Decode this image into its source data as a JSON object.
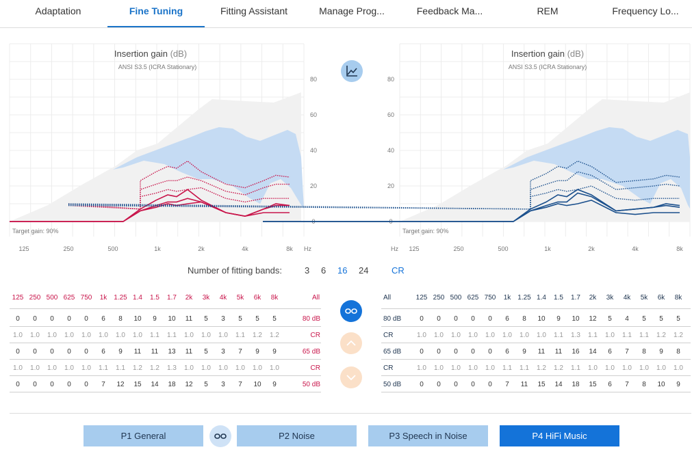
{
  "tabs": [
    {
      "label": "Adaptation"
    },
    {
      "label": "Fine Tuning"
    },
    {
      "label": "Fitting Assistant"
    },
    {
      "label": "Manage Prog..."
    },
    {
      "label": "Feedback Ma..."
    },
    {
      "label": "REM"
    },
    {
      "label": "Frequency Lo..."
    }
  ],
  "colors": {
    "left": "#c8144a",
    "right": "#1a4f8c",
    "accent": "#1473d9",
    "band": "#a7ccee"
  },
  "chart_title": "Insertion gain",
  "chart_unit": "(dB)",
  "chart_subtitle": "ANSI S3.5 (ICRA Stationary)",
  "target_gain": "Target gain: 90%",
  "hz": "Hz",
  "y_ticks": [
    "80",
    "60",
    "40",
    "20",
    "0"
  ],
  "freq_labels": [
    "125",
    "250",
    "500",
    "1k",
    "2k",
    "4k",
    "8k"
  ],
  "chart_data": [
    {
      "type": "line",
      "title": "Insertion gain (dB)",
      "subtitle": "ANSI S3.5 (ICRA Stationary)",
      "xlabel": "Hz",
      "ylim": [
        0,
        90
      ],
      "grid": true,
      "categories": [
        "125",
        "250",
        "500",
        "625",
        "750",
        "1k",
        "1.25",
        "1.4",
        "1.5",
        "1.7",
        "2k",
        "3k",
        "4k",
        "5k",
        "6k",
        "8k"
      ],
      "series": [
        {
          "name": "80 dB",
          "values": [
            0,
            0,
            0,
            0,
            0,
            6,
            8,
            10,
            9,
            10,
            11,
            5,
            3,
            5,
            5,
            5
          ]
        },
        {
          "name": "65 dB",
          "values": [
            0,
            0,
            0,
            0,
            0,
            6,
            9,
            11,
            11,
            13,
            11,
            5,
            3,
            7,
            9,
            9
          ]
        },
        {
          "name": "50 dB",
          "values": [
            0,
            0,
            0,
            0,
            0,
            7,
            12,
            15,
            14,
            18,
            12,
            5,
            3,
            7,
            10,
            9
          ]
        }
      ]
    },
    {
      "type": "line",
      "title": "Insertion gain (dB)",
      "subtitle": "ANSI S3.5 (ICRA Stationary)",
      "xlabel": "Hz",
      "ylim": [
        0,
        90
      ],
      "grid": true,
      "categories": [
        "125",
        "250",
        "500",
        "625",
        "750",
        "1k",
        "1.25",
        "1.4",
        "1.5",
        "1.7",
        "2k",
        "3k",
        "4k",
        "5k",
        "6k",
        "8k"
      ],
      "series": [
        {
          "name": "80 dB",
          "values": [
            0,
            0,
            0,
            0,
            0,
            6,
            8,
            10,
            9,
            10,
            12,
            5,
            4,
            5,
            5,
            5
          ]
        },
        {
          "name": "65 dB",
          "values": [
            0,
            0,
            0,
            0,
            0,
            6,
            9,
            11,
            11,
            16,
            14,
            6,
            7,
            8,
            9,
            8
          ]
        },
        {
          "name": "50 dB",
          "values": [
            0,
            0,
            0,
            0,
            0,
            7,
            11,
            15,
            14,
            18,
            15,
            6,
            7,
            8,
            10,
            9
          ]
        }
      ]
    }
  ],
  "bands_label": "Number of fitting bands:",
  "bands_options": [
    "3",
    "6",
    "16",
    "24"
  ],
  "cr_label": "CR",
  "freq_header": [
    "125",
    "250",
    "500",
    "625",
    "750",
    "1k",
    "1.25",
    "1.4",
    "1.5",
    "1.7",
    "2k",
    "3k",
    "4k",
    "5k",
    "6k",
    "8k"
  ],
  "all_label": "All",
  "left_table": [
    {
      "label": "80 dB",
      "values": [
        "0",
        "0",
        "0",
        "0",
        "0",
        "6",
        "8",
        "10",
        "9",
        "10",
        "11",
        "5",
        "3",
        "5",
        "5",
        "5"
      ]
    },
    {
      "label": "CR",
      "values": [
        "1.0",
        "1.0",
        "1.0",
        "1.0",
        "1.0",
        "1.0",
        "1.0",
        "1.0",
        "1.1",
        "1.1",
        "1.0",
        "1.0",
        "1.0",
        "1.1",
        "1.2",
        "1.2"
      ]
    },
    {
      "label": "65 dB",
      "values": [
        "0",
        "0",
        "0",
        "0",
        "0",
        "6",
        "9",
        "11",
        "11",
        "13",
        "11",
        "5",
        "3",
        "7",
        "9",
        "9"
      ]
    },
    {
      "label": "CR",
      "values": [
        "1.0",
        "1.0",
        "1.0",
        "1.0",
        "1.0",
        "1.1",
        "1.1",
        "1.2",
        "1.2",
        "1.3",
        "1.0",
        "1.0",
        "1.0",
        "1.0",
        "1.0",
        "1.0"
      ]
    },
    {
      "label": "50 dB",
      "values": [
        "0",
        "0",
        "0",
        "0",
        "0",
        "7",
        "12",
        "15",
        "14",
        "18",
        "12",
        "5",
        "3",
        "7",
        "10",
        "9"
      ]
    }
  ],
  "right_table": [
    {
      "label": "80 dB",
      "values": [
        "0",
        "0",
        "0",
        "0",
        "0",
        "6",
        "8",
        "10",
        "9",
        "10",
        "12",
        "5",
        "4",
        "5",
        "5",
        "5"
      ]
    },
    {
      "label": "CR",
      "values": [
        "1.0",
        "1.0",
        "1.0",
        "1.0",
        "1.0",
        "1.0",
        "1.0",
        "1.0",
        "1.1",
        "1.3",
        "1.1",
        "1.0",
        "1.1",
        "1.1",
        "1.2",
        "1.2"
      ]
    },
    {
      "label": "65 dB",
      "values": [
        "0",
        "0",
        "0",
        "0",
        "0",
        "6",
        "9",
        "11",
        "11",
        "16",
        "14",
        "6",
        "7",
        "8",
        "9",
        "8"
      ]
    },
    {
      "label": "CR",
      "values": [
        "1.0",
        "1.0",
        "1.0",
        "1.0",
        "1.0",
        "1.1",
        "1.1",
        "1.2",
        "1.2",
        "1.1",
        "1.0",
        "1.0",
        "1.0",
        "1.0",
        "1.0",
        "1.0"
      ]
    },
    {
      "label": "50 dB",
      "values": [
        "0",
        "0",
        "0",
        "0",
        "0",
        "7",
        "11",
        "15",
        "14",
        "18",
        "15",
        "6",
        "7",
        "8",
        "10",
        "9"
      ]
    }
  ],
  "programs": [
    {
      "label": "P1  General"
    },
    {
      "label": "P2  Noise"
    },
    {
      "label": "P3  Speech in Noise"
    },
    {
      "label": "P4  HiFi Music"
    }
  ],
  "icons": {
    "chart_toggle": "line-chart-icon",
    "link": "link-icon",
    "up": "chevron-up-icon",
    "down": "chevron-down-icon"
  }
}
